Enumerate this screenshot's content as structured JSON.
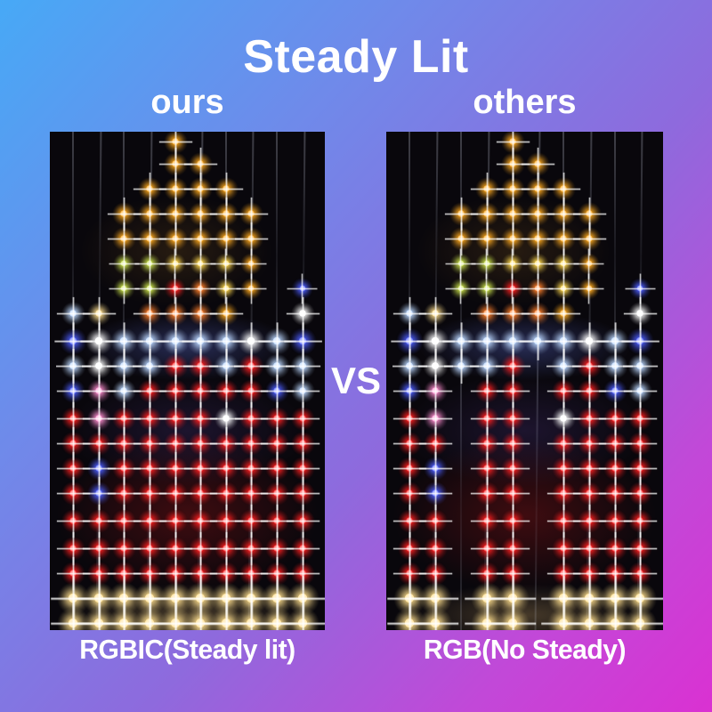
{
  "title": "Steady Lit",
  "vs_label": "VS",
  "background": {
    "top_left": "#47a9f6",
    "middle": "#8e6add",
    "bottom_right": "#da31d2"
  },
  "led_colors": {
    "gold": "#ffaa1e",
    "yellow": "#ffd84d",
    "lime": "#c8e04a",
    "orange": "#ff7f2a",
    "red": "#ff1e1e",
    "blue": "#4d5eff",
    "ice": "#bcd8ff",
    "white": "#ffffff",
    "pink": "#ff8fd0",
    "warm": "#ffdf8e"
  },
  "panels": [
    {
      "id": "ours",
      "header_label": "ours",
      "caption": "RGBIC(Steady lit)",
      "columns": 10,
      "rows": [
        {
          "y": 0.02,
          "s": 1.1,
          "leds": {
            "4": "gold"
          }
        },
        {
          "y": 0.065,
          "s": 1.1,
          "leds": {
            "4": "gold",
            "5": "gold"
          }
        },
        {
          "y": 0.115,
          "s": 1.1,
          "leds": {
            "3": "gold",
            "4": "gold",
            "5": "gold",
            "6": "gold"
          }
        },
        {
          "y": 0.165,
          "s": 1.1,
          "leds": {
            "2": "gold",
            "3": "gold",
            "4": "gold",
            "5": "gold",
            "6": "gold",
            "7": "gold"
          }
        },
        {
          "y": 0.215,
          "s": 1.1,
          "leds": {
            "2": "gold",
            "3": "gold",
            "4": "gold",
            "5": "gold",
            "6": "gold",
            "7": "gold"
          }
        },
        {
          "y": 0.265,
          "s": 1.0,
          "leds": {
            "2": "lime",
            "3": "lime",
            "4": "yellow",
            "5": "yellow",
            "6": "yellow",
            "7": "gold"
          }
        },
        {
          "y": 0.315,
          "s": 1.0,
          "leds": {
            "2": "lime",
            "3": "lime",
            "4": "red",
            "5": "orange",
            "6": "yellow",
            "7": "gold",
            "9": "blue"
          }
        },
        {
          "y": 0.365,
          "s": 1.1,
          "leds": {
            "0": "ice",
            "1": "warm",
            "3": "orange",
            "4": "orange",
            "5": "orange",
            "6": "gold",
            "9": "white"
          }
        },
        {
          "y": 0.42,
          "s": 1.25,
          "leds": {
            "0": "blue",
            "1": "white",
            "2": "ice",
            "3": "ice",
            "4": "ice",
            "5": "ice",
            "6": "ice",
            "7": "white",
            "8": "ice",
            "9": "blue"
          }
        },
        {
          "y": 0.47,
          "s": 1.15,
          "leds": {
            "0": "ice",
            "1": "white",
            "2": "ice",
            "3": "ice",
            "4": "red",
            "5": "red",
            "6": "ice",
            "7": "red",
            "8": "ice",
            "9": "ice"
          }
        },
        {
          "y": 0.52,
          "s": 1.1,
          "leds": {
            "0": "blue",
            "1": "pink",
            "2": "ice",
            "3": "red",
            "4": "red",
            "5": "red",
            "6": "red",
            "7": "red",
            "8": "blue",
            "9": "ice"
          }
        },
        {
          "y": 0.575,
          "s": 1.1,
          "leds": {
            "0": "red",
            "1": "pink",
            "2": "red",
            "3": "red",
            "4": "red",
            "5": "red",
            "6": "white",
            "7": "red",
            "8": "red",
            "9": "red"
          }
        },
        {
          "y": 0.625,
          "s": 1.1,
          "leds": {
            "0": "red",
            "1": "red",
            "2": "red",
            "3": "red",
            "4": "red",
            "5": "red",
            "6": "red",
            "7": "red",
            "8": "red",
            "9": "red"
          }
        },
        {
          "y": 0.675,
          "s": 1.1,
          "leds": {
            "0": "red",
            "1": "blue",
            "2": "red",
            "3": "red",
            "4": "red",
            "5": "red",
            "6": "red",
            "7": "red",
            "8": "red",
            "9": "red"
          }
        },
        {
          "y": 0.725,
          "s": 1.1,
          "leds": {
            "0": "red",
            "1": "blue",
            "2": "red",
            "3": "red",
            "4": "red",
            "5": "red",
            "6": "red",
            "7": "red",
            "8": "red",
            "9": "red"
          }
        },
        {
          "y": 0.78,
          "s": 1.1,
          "leds": {
            "0": "red",
            "1": "red",
            "2": "red",
            "3": "red",
            "4": "red",
            "5": "red",
            "6": "red",
            "7": "red",
            "8": "red",
            "9": "red"
          }
        },
        {
          "y": 0.835,
          "s": 1.1,
          "leds": {
            "0": "red",
            "1": "red",
            "2": "red",
            "3": "red",
            "4": "red",
            "5": "red",
            "6": "red",
            "7": "red",
            "8": "red",
            "9": "red"
          }
        },
        {
          "y": 0.885,
          "s": 1.1,
          "leds": {
            "0": "red",
            "1": "red",
            "2": "red",
            "3": "red",
            "4": "red",
            "5": "red",
            "6": "red",
            "7": "red",
            "8": "red",
            "9": "red"
          }
        },
        {
          "y": 0.935,
          "s": 1.5,
          "leds": {
            "0": "warm",
            "1": "warm",
            "2": "warm",
            "3": "warm",
            "4": "warm",
            "5": "warm",
            "6": "warm",
            "7": "warm",
            "8": "warm",
            "9": "warm"
          }
        },
        {
          "y": 0.985,
          "s": 1.5,
          "leds": {
            "0": "warm",
            "1": "warm",
            "2": "warm",
            "3": "warm",
            "4": "warm",
            "5": "warm",
            "6": "warm",
            "7": "warm",
            "8": "warm",
            "9": "warm"
          }
        }
      ]
    },
    {
      "id": "others",
      "header_label": "others",
      "caption": "RGB(No Steady)",
      "columns": 10,
      "rows": [
        {
          "y": 0.02,
          "s": 1.1,
          "leds": {
            "4": "gold"
          }
        },
        {
          "y": 0.065,
          "s": 1.1,
          "leds": {
            "4": "gold",
            "5": "gold"
          }
        },
        {
          "y": 0.115,
          "s": 1.1,
          "leds": {
            "3": "gold",
            "4": "gold",
            "5": "gold",
            "6": "gold"
          }
        },
        {
          "y": 0.165,
          "s": 1.1,
          "leds": {
            "2": "gold",
            "3": "gold",
            "4": "gold",
            "5": "gold",
            "6": "gold",
            "7": "gold"
          }
        },
        {
          "y": 0.215,
          "s": 1.1,
          "leds": {
            "2": "gold",
            "3": "gold",
            "4": "gold",
            "5": "gold",
            "6": "gold",
            "7": "gold"
          }
        },
        {
          "y": 0.265,
          "s": 1.0,
          "leds": {
            "2": "lime",
            "3": "lime",
            "4": "yellow",
            "5": "yellow",
            "6": "yellow",
            "7": "gold"
          }
        },
        {
          "y": 0.315,
          "s": 1.0,
          "leds": {
            "2": "lime",
            "3": "lime",
            "4": "red",
            "5": "orange",
            "6": "yellow",
            "7": "gold",
            "9": "blue"
          }
        },
        {
          "y": 0.365,
          "s": 1.1,
          "leds": {
            "0": "ice",
            "1": "warm",
            "3": "orange",
            "4": "orange",
            "5": "orange",
            "6": "gold",
            "9": "white"
          }
        },
        {
          "y": 0.42,
          "s": 1.25,
          "leds": {
            "0": "blue",
            "1": "white",
            "2": "ice",
            "3": "ice",
            "4": "ice",
            "5": "ice",
            "6": "ice",
            "7": "white",
            "8": "ice",
            "9": "blue"
          }
        },
        {
          "y": 0.47,
          "s": 1.15,
          "leds": {
            "0": "ice",
            "1": "white",
            "2": "ice",
            "3": "ice",
            "4": "red",
            "6": "ice",
            "7": "red",
            "8": "ice",
            "9": "ice"
          }
        },
        {
          "y": 0.52,
          "s": 1.1,
          "leds": {
            "0": "blue",
            "1": "pink",
            "3": "red",
            "4": "red",
            "6": "red",
            "7": "red",
            "8": "blue",
            "9": "ice"
          }
        },
        {
          "y": 0.575,
          "s": 1.1,
          "leds": {
            "0": "red",
            "1": "pink",
            "3": "red",
            "4": "red",
            "6": "white",
            "7": "red",
            "8": "red",
            "9": "red"
          }
        },
        {
          "y": 0.625,
          "s": 1.1,
          "leds": {
            "0": "red",
            "1": "red",
            "3": "red",
            "4": "red",
            "6": "red",
            "7": "red",
            "8": "red",
            "9": "red"
          }
        },
        {
          "y": 0.675,
          "s": 1.1,
          "leds": {
            "0": "red",
            "1": "blue",
            "3": "red",
            "4": "red",
            "6": "red",
            "7": "red",
            "8": "red",
            "9": "red"
          }
        },
        {
          "y": 0.725,
          "s": 1.1,
          "leds": {
            "0": "red",
            "1": "blue",
            "3": "red",
            "4": "red",
            "6": "red",
            "7": "red",
            "8": "red",
            "9": "red"
          }
        },
        {
          "y": 0.78,
          "s": 1.1,
          "leds": {
            "0": "red",
            "1": "red",
            "3": "red",
            "4": "red",
            "6": "red",
            "7": "red",
            "8": "red",
            "9": "red"
          }
        },
        {
          "y": 0.835,
          "s": 1.1,
          "leds": {
            "0": "red",
            "1": "red",
            "3": "red",
            "4": "red",
            "6": "red",
            "7": "red",
            "8": "red",
            "9": "red"
          }
        },
        {
          "y": 0.885,
          "s": 1.1,
          "leds": {
            "0": "red",
            "1": "red",
            "3": "red",
            "4": "red",
            "6": "red",
            "7": "red",
            "8": "red",
            "9": "red"
          }
        },
        {
          "y": 0.935,
          "s": 1.5,
          "leds": {
            "0": "warm",
            "1": "warm",
            "3": "warm",
            "4": "warm",
            "6": "warm",
            "7": "warm",
            "8": "warm",
            "9": "warm"
          }
        },
        {
          "y": 0.985,
          "s": 1.5,
          "leds": {
            "0": "warm",
            "1": "warm",
            "3": "warm",
            "4": "warm",
            "6": "warm",
            "7": "warm",
            "8": "warm",
            "9": "warm"
          }
        }
      ]
    }
  ]
}
